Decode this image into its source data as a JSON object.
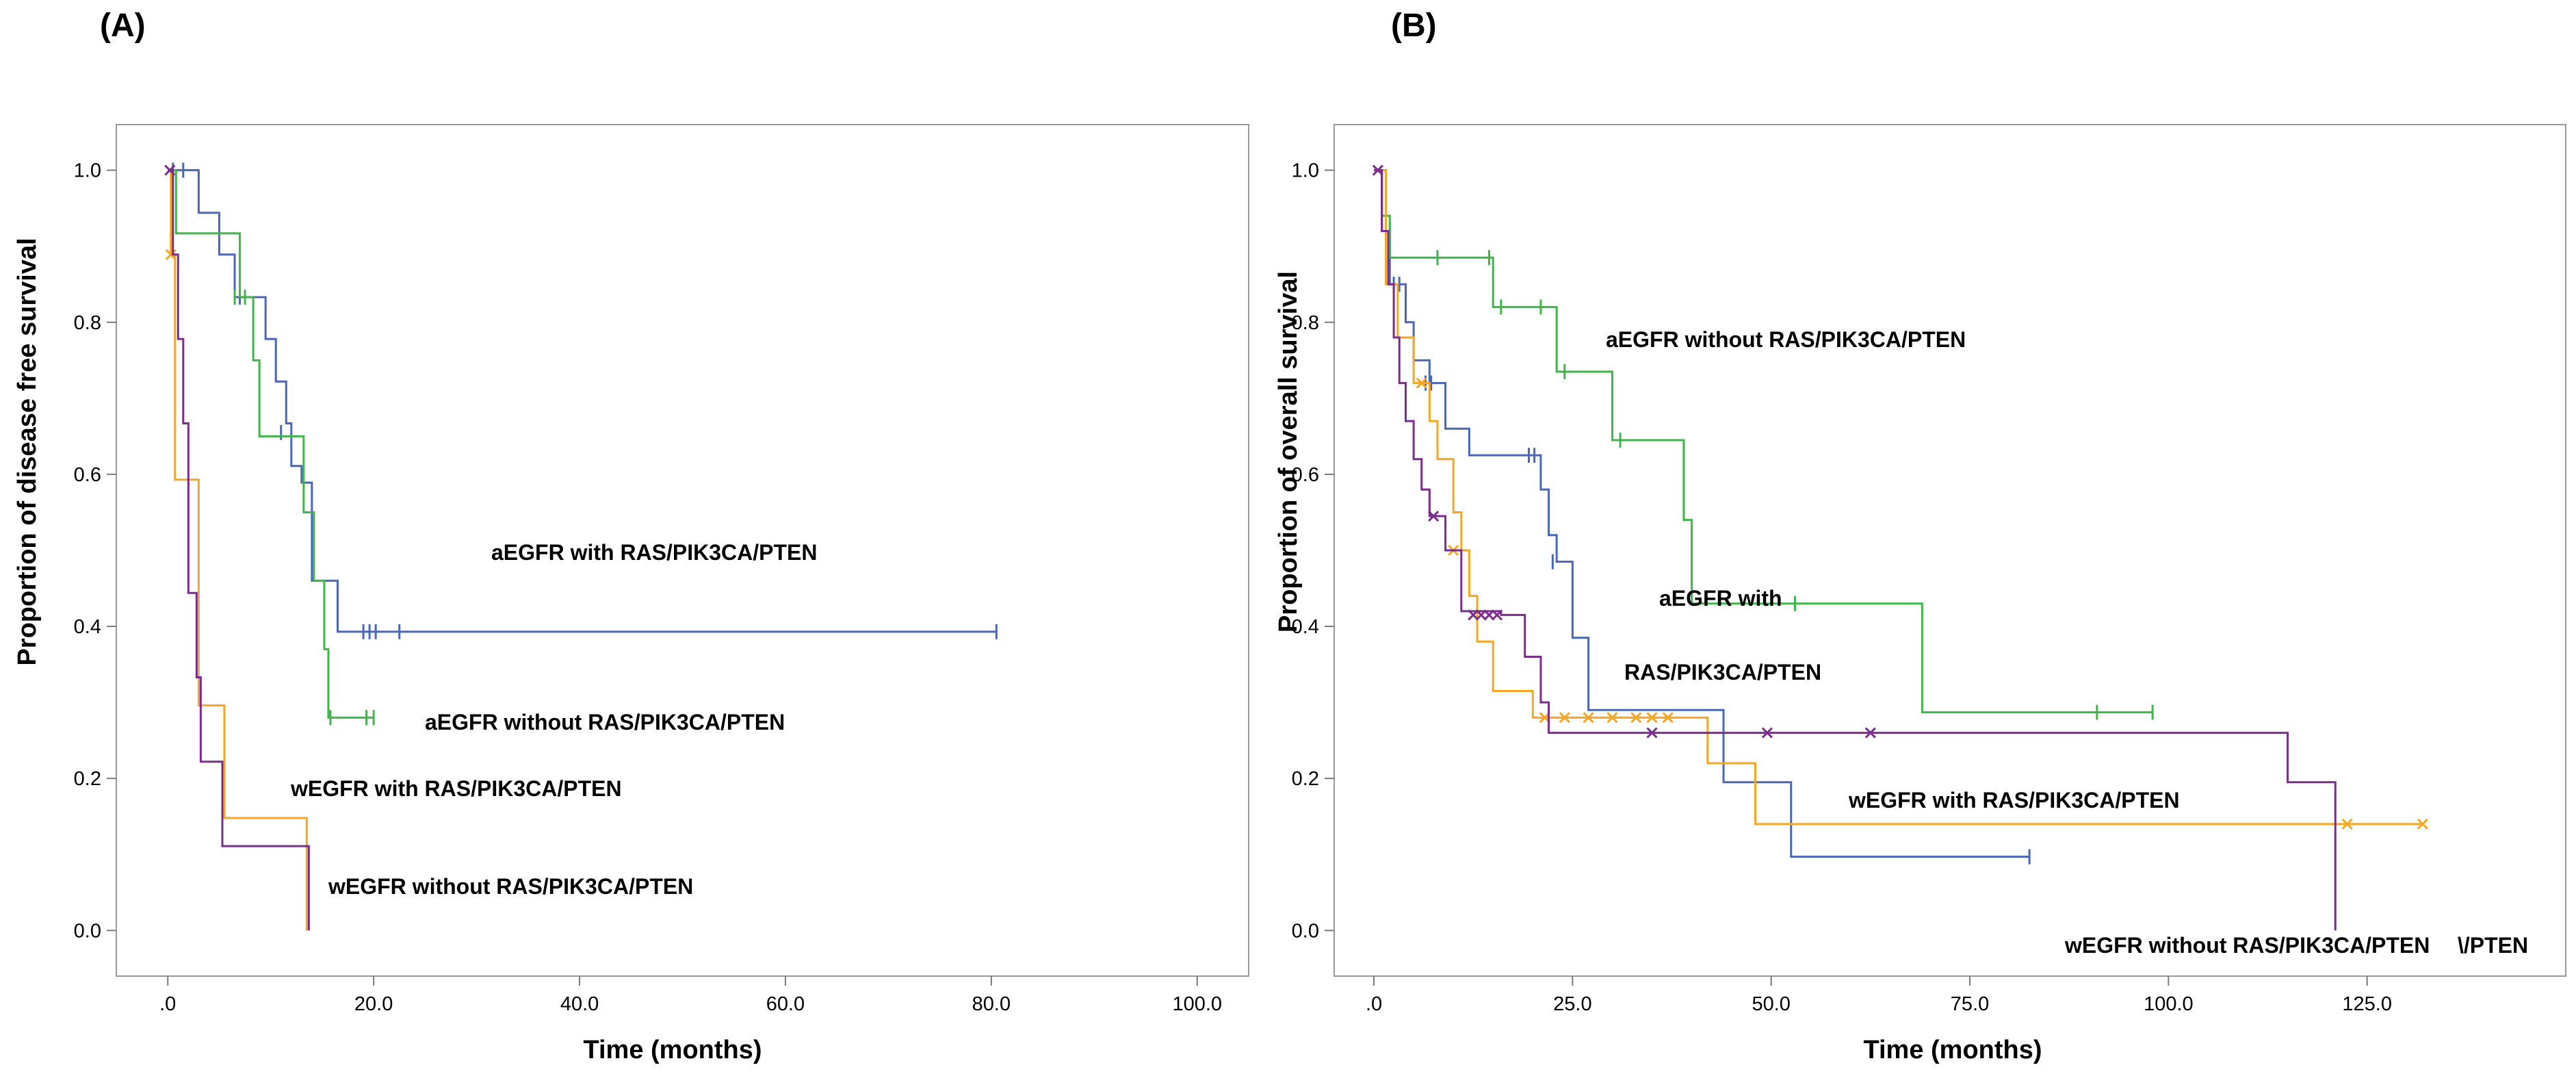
{
  "chart_data": [
    {
      "panel_label": "(A)",
      "type": "line",
      "subtype": "kaplan-meier",
      "title": "",
      "xlabel": "Time (months)",
      "ylabel": "Proportion of disease free survival",
      "xlim": [
        -5,
        105
      ],
      "ylim": [
        -0.06,
        1.06
      ],
      "xticks": [
        0,
        20,
        40,
        60,
        80,
        100
      ],
      "xtick_labels": [
        ".0",
        "20.0",
        "40.0",
        "60.0",
        "80.0",
        "100.0"
      ],
      "yticks": [
        0,
        0.2,
        0.4,
        0.6,
        0.8,
        1.0
      ],
      "ytick_labels": [
        "0.0",
        "0.2",
        "0.4",
        "0.6",
        "0.8",
        "1.0"
      ],
      "series": [
        {
          "name": "aEGFR with RAS/PIK3CA/PTEN",
          "color": "#4a66b8",
          "steps": [
            [
              0,
              1.0
            ],
            [
              3,
              0.944
            ],
            [
              5,
              0.889
            ],
            [
              6.5,
              0.833
            ],
            [
              9.5,
              0.778
            ],
            [
              10.5,
              0.722
            ],
            [
              11.5,
              0.667
            ],
            [
              12,
              0.611
            ],
            [
              13,
              0.589
            ],
            [
              14,
              0.46
            ],
            [
              16.5,
              0.393
            ],
            [
              80.5,
              0.393
            ]
          ],
          "censored": [
            [
              0.5,
              1.0
            ],
            [
              1.5,
              1.0
            ],
            [
              7,
              0.833
            ],
            [
              11,
              0.655
            ],
            [
              19,
              0.393
            ],
            [
              19.6,
              0.393
            ],
            [
              20.2,
              0.393
            ],
            [
              22.5,
              0.393
            ],
            [
              80.5,
              0.393
            ]
          ]
        },
        {
          "name": "aEGFR without RAS/PIK3CA/PTEN",
          "color": "#3fb54a",
          "steps": [
            [
              0,
              1.0
            ],
            [
              0.8,
              0.917
            ],
            [
              7,
              0.833
            ],
            [
              8.3,
              0.75
            ],
            [
              8.9,
              0.65
            ],
            [
              11.5,
              0.65
            ],
            [
              13.2,
              0.55
            ],
            [
              14.2,
              0.46
            ],
            [
              15.2,
              0.37
            ],
            [
              15.6,
              0.28
            ],
            [
              20,
              0.28
            ]
          ],
          "censored": [
            [
              6.5,
              0.833
            ],
            [
              7.5,
              0.833
            ],
            [
              15.8,
              0.28
            ],
            [
              19.3,
              0.28
            ],
            [
              20,
              0.28
            ]
          ]
        },
        {
          "name": "wEGFR with RAS/PIK3CA/PTEN",
          "color": "#f5a623",
          "steps": [
            [
              0,
              1.0
            ],
            [
              0.3,
              0.889
            ],
            [
              0.7,
              0.593
            ],
            [
              3,
              0.296
            ],
            [
              5.5,
              0.148
            ],
            [
              13.5,
              0.0
            ]
          ],
          "censored": [
            [
              0.3,
              0.889
            ]
          ]
        },
        {
          "name": "wEGFR without RAS/PIK3CA/PTEN",
          "color": "#7b2d8e",
          "steps": [
            [
              0,
              1.0
            ],
            [
              0.5,
              0.889
            ],
            [
              1.0,
              0.778
            ],
            [
              1.5,
              0.667
            ],
            [
              2.0,
              0.444
            ],
            [
              2.8,
              0.333
            ],
            [
              3.2,
              0.222
            ],
            [
              5.3,
              0.111
            ],
            [
              13.7,
              0.0
            ]
          ],
          "censored": [
            [
              0.2,
              1.0
            ]
          ]
        }
      ]
    },
    {
      "panel_label": "(B)",
      "type": "line",
      "subtype": "kaplan-meier",
      "title": "",
      "xlabel": "Time (months)",
      "ylabel": "Proportion of overall survival",
      "xlim": [
        -5,
        150
      ],
      "ylim": [
        -0.06,
        1.06
      ],
      "xticks": [
        0,
        25,
        50,
        75,
        100,
        125
      ],
      "xtick_labels": [
        ".0",
        "25.0",
        "50.0",
        "75.0",
        "100.0",
        "125.0"
      ],
      "yticks": [
        0,
        0.2,
        0.4,
        0.6,
        0.8,
        1.0
      ],
      "ytick_labels": [
        "0.0",
        "0.2",
        "0.4",
        "0.6",
        "0.8",
        "1.0"
      ],
      "series": [
        {
          "name": "aEGFR with RAS/PIK3CA/PTEN",
          "color": "#4a66b8",
          "steps": [
            [
              0,
              1.0
            ],
            [
              1,
              0.92
            ],
            [
              2,
              0.85
            ],
            [
              4,
              0.8
            ],
            [
              5,
              0.75
            ],
            [
              7,
              0.72
            ],
            [
              9,
              0.66
            ],
            [
              12,
              0.625
            ],
            [
              16,
              0.625
            ],
            [
              21,
              0.58
            ],
            [
              22,
              0.52
            ],
            [
              23,
              0.485
            ],
            [
              25,
              0.385
            ],
            [
              27,
              0.29
            ],
            [
              44,
              0.195
            ],
            [
              52.5,
              0.097
            ],
            [
              82.5,
              0.097
            ]
          ],
          "censored": [
            [
              2.5,
              0.85
            ],
            [
              3.2,
              0.85
            ],
            [
              6.5,
              0.72
            ],
            [
              7.2,
              0.72
            ],
            [
              19.5,
              0.625
            ],
            [
              20.2,
              0.625
            ],
            [
              22.5,
              0.485
            ],
            [
              82.5,
              0.097
            ]
          ]
        },
        {
          "name": "aEGFR without RAS/PIK3CA/PTEN",
          "color": "#3fb54a",
          "steps": [
            [
              0,
              1.0
            ],
            [
              1,
              0.94
            ],
            [
              2,
              0.885
            ],
            [
              15,
              0.82
            ],
            [
              23,
              0.735
            ],
            [
              30,
              0.645
            ],
            [
              39,
              0.54
            ],
            [
              40,
              0.43
            ],
            [
              69,
              0.287
            ],
            [
              98,
              0.287
            ]
          ],
          "censored": [
            [
              8,
              0.885
            ],
            [
              14.5,
              0.885
            ],
            [
              16,
              0.82
            ],
            [
              21,
              0.82
            ],
            [
              24,
              0.735
            ],
            [
              31,
              0.645
            ],
            [
              53,
              0.43
            ],
            [
              91,
              0.287
            ],
            [
              98,
              0.287
            ]
          ]
        },
        {
          "name": "wEGFR with RAS/PIK3CA/PTEN",
          "color": "#f5a623",
          "steps": [
            [
              0,
              1.0
            ],
            [
              1.5,
              0.85
            ],
            [
              3,
              0.78
            ],
            [
              5,
              0.72
            ],
            [
              7,
              0.67
            ],
            [
              8,
              0.62
            ],
            [
              10,
              0.55
            ],
            [
              11,
              0.5
            ],
            [
              12,
              0.44
            ],
            [
              13,
              0.38
            ],
            [
              15,
              0.315
            ],
            [
              20,
              0.28
            ],
            [
              42,
              0.22
            ],
            [
              48,
              0.14
            ],
            [
              132,
              0.14
            ]
          ],
          "censored": [
            [
              0.5,
              1.0
            ],
            [
              6,
              0.72
            ],
            [
              10,
              0.5
            ],
            [
              21.5,
              0.28
            ],
            [
              24,
              0.28
            ],
            [
              27,
              0.28
            ],
            [
              30,
              0.28
            ],
            [
              33,
              0.28
            ],
            [
              35,
              0.28
            ],
            [
              37,
              0.28
            ],
            [
              122.5,
              0.14
            ],
            [
              132,
              0.14
            ]
          ]
        },
        {
          "name": "wEGFR without RAS/PIK3CA/PTEN",
          "color": "#7b2d8e",
          "steps": [
            [
              0,
              1.0
            ],
            [
              1,
              0.92
            ],
            [
              1.8,
              0.85
            ],
            [
              2.5,
              0.78
            ],
            [
              3.2,
              0.72
            ],
            [
              4,
              0.67
            ],
            [
              5,
              0.62
            ],
            [
              6,
              0.58
            ],
            [
              7,
              0.545
            ],
            [
              9,
              0.5
            ],
            [
              11,
              0.42
            ],
            [
              16,
              0.415
            ],
            [
              19,
              0.36
            ],
            [
              21,
              0.3
            ],
            [
              22,
              0.26
            ],
            [
              115,
              0.195
            ],
            [
              121,
              0.0
            ]
          ],
          "censored": [
            [
              0.5,
              1.0
            ],
            [
              7.5,
              0.545
            ],
            [
              12.5,
              0.415
            ],
            [
              13.5,
              0.415
            ],
            [
              14.5,
              0.415
            ],
            [
              15.5,
              0.415
            ],
            [
              35,
              0.26
            ],
            [
              49.5,
              0.26
            ],
            [
              62.5,
              0.26
            ]
          ]
        }
      ]
    }
  ],
  "annotations": {
    "panelA": [
      {
        "text": "aEGFR with RAS/PIK3CA/PTEN"
      },
      {
        "text": "aEGFR without RAS/PIK3CA/PTEN"
      },
      {
        "text": "wEGFR with RAS/PIK3CA/PTEN"
      },
      {
        "text": "wEGFR without RAS/PIK3CA/PTEN"
      }
    ],
    "panelB": [
      {
        "text": "aEGFR without RAS/PIK3CA/PTEN"
      },
      {
        "text": "aEGFR with"
      },
      {
        "text": "RAS/PIK3CA/PTEN"
      },
      {
        "text": "wEGFR with RAS/PIK3CA/PTEN"
      },
      {
        "text": "wEGFR without RAS/PIK3CA/PTEN"
      },
      {
        "text": "\\/PTEN"
      }
    ]
  },
  "style": {
    "frame_color": "#9a9a9a",
    "tick_color": "#7a7a7a"
  }
}
